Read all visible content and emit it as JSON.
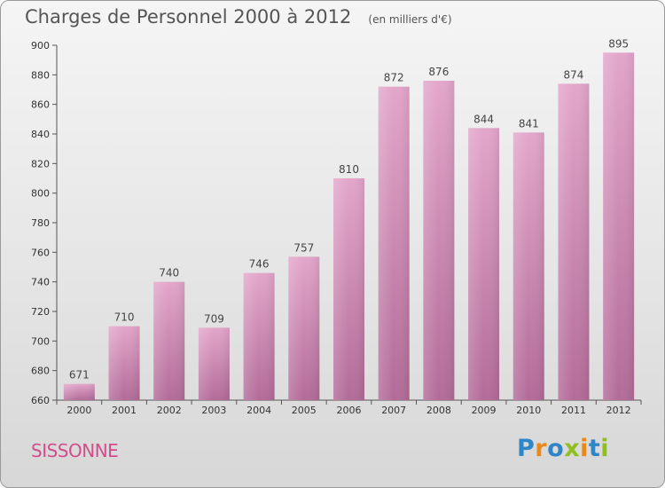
{
  "header": {
    "title": "Charges de Personnel 2000 à 2012",
    "subtitle": "(en milliers d'€)"
  },
  "footer": {
    "city": "SISSONNE",
    "logo_text": "Proxiti",
    "logo_colors": [
      "#2e86c8",
      "#e8891a",
      "#2e86c8",
      "#8fbf1f",
      "#e8891a",
      "#2e86c8",
      "#8fbf1f"
    ]
  },
  "colors": {
    "bar_top": "#e3a6cb",
    "bar_bottom": "#b26b98",
    "city_text": "#d24d8b"
  },
  "chart_data": {
    "type": "bar",
    "title": "Charges de Personnel 2000 à 2012",
    "subtitle": "(en milliers d'€)",
    "xlabel": "",
    "ylabel": "",
    "categories": [
      "2000",
      "2001",
      "2002",
      "2003",
      "2004",
      "2005",
      "2006",
      "2007",
      "2008",
      "2009",
      "2010",
      "2011",
      "2012"
    ],
    "values": [
      671,
      710,
      740,
      709,
      746,
      757,
      810,
      872,
      876,
      844,
      841,
      874,
      895
    ],
    "ylim": [
      660,
      900
    ],
    "yticks": [
      660,
      680,
      700,
      720,
      740,
      760,
      780,
      800,
      820,
      840,
      860,
      880,
      900
    ],
    "grid": false,
    "legend": "none",
    "data_labels": true
  }
}
